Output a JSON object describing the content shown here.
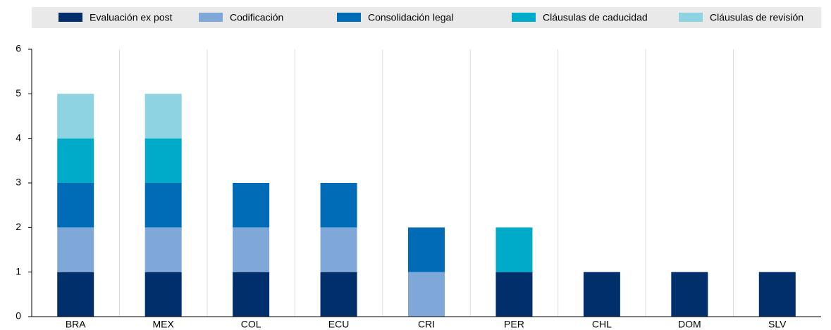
{
  "chart_data": {
    "type": "stacked_bar",
    "categories": [
      "BRA",
      "MEX",
      "COL",
      "ECU",
      "CRI",
      "PER",
      "CHL",
      "DOM",
      "SLV"
    ],
    "series": [
      {
        "name": "Evaluación ex post",
        "color": "#002f6c",
        "values": [
          1,
          1,
          1,
          1,
          0,
          1,
          1,
          1,
          1
        ]
      },
      {
        "name": "Codificación",
        "color": "#7fa8d9",
        "values": [
          1,
          1,
          1,
          1,
          1,
          0,
          0,
          0,
          0
        ]
      },
      {
        "name": "Consolidación legal",
        "color": "#006bb6",
        "values": [
          1,
          1,
          1,
          1,
          1,
          0,
          0,
          0,
          0
        ]
      },
      {
        "name": "Cláusulas de caducidad",
        "color": "#00abc9",
        "values": [
          1,
          1,
          0,
          0,
          0,
          1,
          0,
          0,
          0
        ]
      },
      {
        "name": "Cláusulas de revisión",
        "color": "#8dd3e2",
        "values": [
          1,
          1,
          0,
          0,
          0,
          0,
          0,
          0,
          0
        ]
      }
    ],
    "ylim": [
      0,
      6
    ],
    "yticks": [
      0,
      1,
      2,
      3,
      4,
      5,
      6
    ],
    "grid": true,
    "legend": "top"
  }
}
